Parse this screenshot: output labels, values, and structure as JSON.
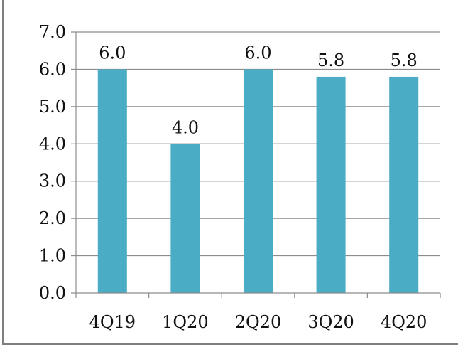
{
  "chart_data": {
    "type": "bar",
    "categories": [
      "4Q19",
      "1Q20",
      "2Q20",
      "3Q20",
      "4Q20"
    ],
    "values": [
      6.0,
      4.0,
      6.0,
      5.8,
      5.8
    ],
    "value_labels": [
      "6.0",
      "4.0",
      "6.0",
      "5.8",
      "5.8"
    ],
    "y_ticks": [
      "0.0",
      "1.0",
      "2.0",
      "3.0",
      "4.0",
      "5.0",
      "6.0",
      "7.0"
    ],
    "ylim": [
      0,
      7
    ],
    "grid": true,
    "legend": "none",
    "title": "",
    "xlabel": "",
    "ylabel": "",
    "colors": {
      "bar": "#4bacc6",
      "grid": "#8c8c8c",
      "axis": "#8c8c8c",
      "border": "#7f7f7f"
    }
  }
}
